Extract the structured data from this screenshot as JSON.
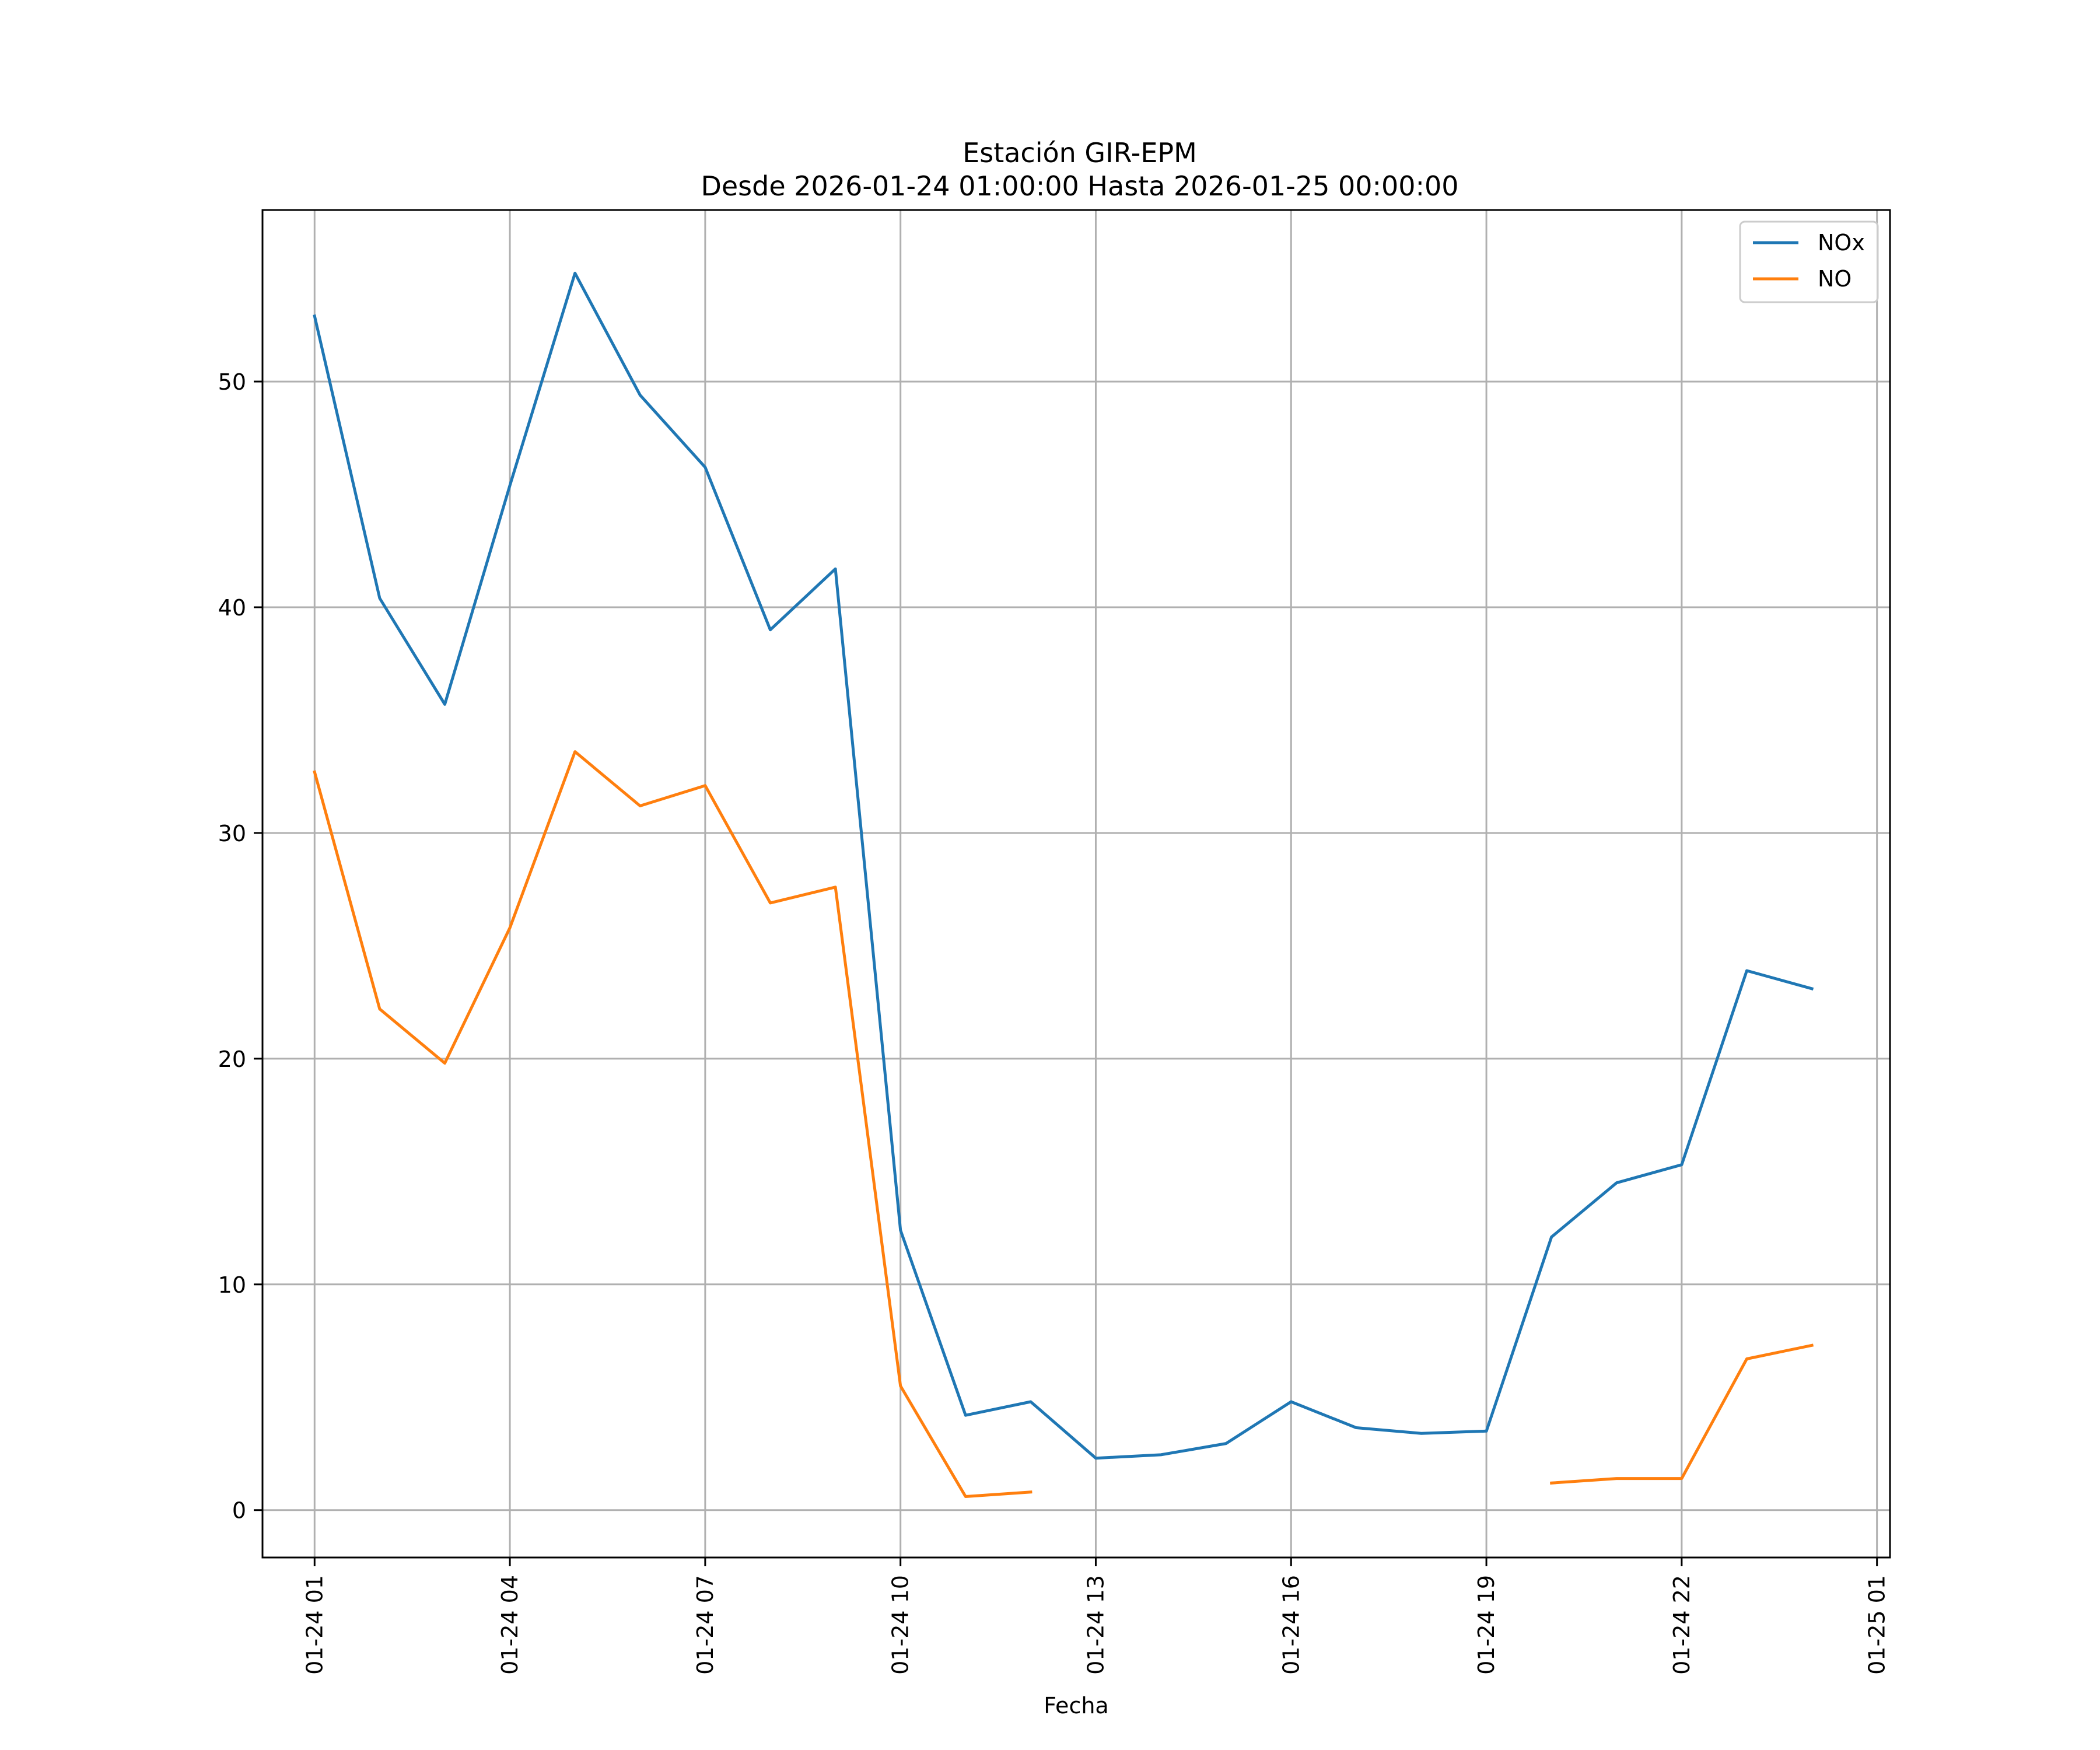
{
  "chart_data": {
    "type": "line",
    "title": "Estación GIR-EPM",
    "subtitle": "Desde 2026-01-24 01:00:00 Hasta 2026-01-25 00:00:00",
    "xlabel": "Fecha",
    "ylabel": "",
    "x": [
      "01-24 01",
      "01-24 02",
      "01-24 03",
      "01-24 04",
      "01-24 05",
      "01-24 06",
      "01-24 07",
      "01-24 08",
      "01-24 09",
      "01-24 10",
      "01-24 11",
      "01-24 12",
      "01-24 13",
      "01-24 14",
      "01-24 15",
      "01-24 16",
      "01-24 17",
      "01-24 18",
      "01-24 19",
      "01-24 20",
      "01-24 21",
      "01-24 22",
      "01-24 23",
      "01-25 00"
    ],
    "x_ticks": [
      "01-24 01",
      "01-24 04",
      "01-24 07",
      "01-24 10",
      "01-24 13",
      "01-24 16",
      "01-24 19",
      "01-24 22",
      "01-25 01"
    ],
    "y_ticks": [
      0,
      10,
      20,
      30,
      40,
      50
    ],
    "xlim_hours": [
      -0.8,
      24.2
    ],
    "ylim": [
      -2.1,
      57.6
    ],
    "grid": true,
    "legend_position": "top-right",
    "series": [
      {
        "name": "NOx",
        "color": "#1f77b4",
        "values": [
          52.9,
          40.4,
          35.7,
          45.4,
          54.8,
          49.4,
          46.2,
          39.0,
          41.7,
          12.4,
          4.2,
          4.8,
          2.3,
          2.45,
          2.95,
          4.8,
          3.65,
          3.4,
          3.5,
          12.1,
          14.5,
          15.3,
          23.9,
          23.1
        ]
      },
      {
        "name": "NO",
        "color": "#ff7f0e",
        "values": [
          32.7,
          22.2,
          19.8,
          25.8,
          33.6,
          31.2,
          32.1,
          26.9,
          27.6,
          5.5,
          0.6,
          0.8,
          null,
          null,
          null,
          null,
          null,
          null,
          null,
          1.2,
          1.4,
          1.4,
          6.7,
          7.3
        ]
      }
    ]
  }
}
